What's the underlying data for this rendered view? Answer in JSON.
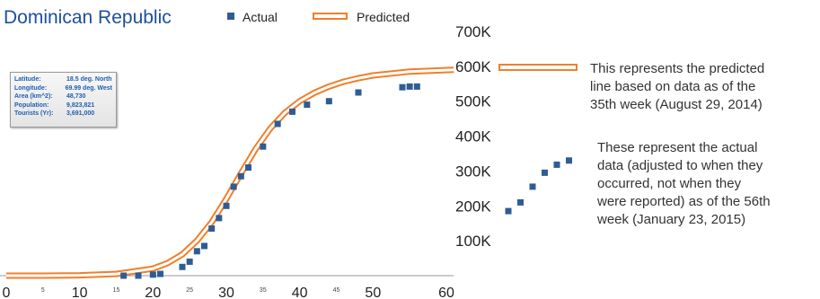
{
  "info_box": {
    "rows": [
      {
        "label": "Latitude:",
        "value": "18.5  deg. North"
      },
      {
        "label": "Longitude:",
        "value": "69.99  deg. West"
      },
      {
        "label": "Area (km^2):",
        "value": "48,730"
      },
      {
        "label": "Population:",
        "value": "9,823,821"
      },
      {
        "label": "Tourists (Yr):",
        "value": "3,691,000"
      }
    ]
  },
  "annotations": {
    "predicted": [
      "This represents the predicted",
      "line based on data as of the",
      "35th week (August 29, 2014)"
    ],
    "actual": [
      "These represent the actual",
      "data (adjusted to when they",
      "occurred, not when they",
      "were reported) as of the 56th",
      "week (January 23, 2015)"
    ]
  },
  "colors": {
    "title": "#1f4e9c",
    "actual_marker": "#2e5d95",
    "predicted_line": "#f07f2a",
    "predicted_core": "#ffffff"
  },
  "chart_data": {
    "type": "scatter",
    "title": "Dominican  Republic",
    "xlabel": "",
    "ylabel": "",
    "xlim": [
      0,
      61
    ],
    "ylim": [
      0,
      700000
    ],
    "x_ticks_major": [
      0,
      10,
      20,
      30,
      40,
      50,
      60
    ],
    "x_ticks_minor": [
      5,
      15,
      25,
      35,
      45
    ],
    "y_ticks": [
      100000,
      200000,
      300000,
      400000,
      500000,
      600000,
      700000
    ],
    "y_tick_labels": [
      "100K",
      "200K",
      "300K",
      "400K",
      "500K",
      "600K",
      "700K"
    ],
    "legend": {
      "position": "top",
      "entries": [
        "Actual",
        "Predicted"
      ]
    },
    "series": [
      {
        "name": "Actual",
        "kind": "markers",
        "x": [
          16,
          18,
          20,
          21,
          24,
          25,
          26,
          27,
          28,
          29,
          30,
          31,
          32,
          33,
          35,
          37,
          39,
          41,
          44,
          48,
          54,
          55,
          56
        ],
        "y": [
          0,
          0,
          3000,
          5000,
          25000,
          40000,
          70000,
          85000,
          135000,
          165000,
          200000,
          255000,
          285000,
          310000,
          370000,
          435000,
          470000,
          490000,
          500000,
          525000,
          540000,
          542000,
          542000
        ]
      },
      {
        "name": "Predicted",
        "kind": "logistic-curve",
        "x": [
          0,
          5,
          10,
          15,
          20,
          22,
          24,
          26,
          28,
          30,
          32,
          34,
          36,
          38,
          40,
          42,
          44,
          46,
          48,
          50,
          55,
          61
        ],
        "y": [
          0,
          0,
          1000,
          5000,
          20000,
          36000,
          61000,
          100000,
          153000,
          220000,
          293000,
          363000,
          422000,
          467000,
          500000,
          524000,
          542000,
          556000,
          566000,
          574000,
          585000,
          590000
        ]
      }
    ],
    "inset_actual_markers": {
      "x": [
        0,
        1,
        2,
        3,
        4,
        5
      ],
      "y": [
        185000,
        210000,
        255000,
        295000,
        318000,
        330000
      ]
    }
  }
}
